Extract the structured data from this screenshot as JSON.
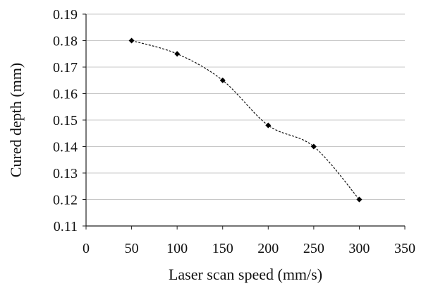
{
  "chart_data": {
    "type": "line",
    "title": "",
    "xlabel": "Laser scan speed (mm/s)",
    "ylabel": "Cured depth (mm)",
    "x": [
      50,
      100,
      150,
      200,
      250,
      300
    ],
    "series": [
      {
        "values": [
          0.18,
          0.175,
          0.165,
          0.148,
          0.14,
          0.12
        ]
      }
    ],
    "xlim": [
      0,
      350
    ],
    "ylim": [
      0.11,
      0.19
    ],
    "xticks": [
      "0",
      "50",
      "100",
      "150",
      "200",
      "250",
      "300",
      "350"
    ],
    "yticks": [
      "0.11",
      "0.12",
      "0.13",
      "0.14",
      "0.15",
      "0.16",
      "0.17",
      "0.18",
      "0.19"
    ],
    "grid": true,
    "line_style": "dashed-smooth",
    "marker": "diamond",
    "colors": {
      "line": "#111111",
      "grid": "#c8c8c8",
      "axis": "#222222",
      "marker": "#000000"
    }
  }
}
